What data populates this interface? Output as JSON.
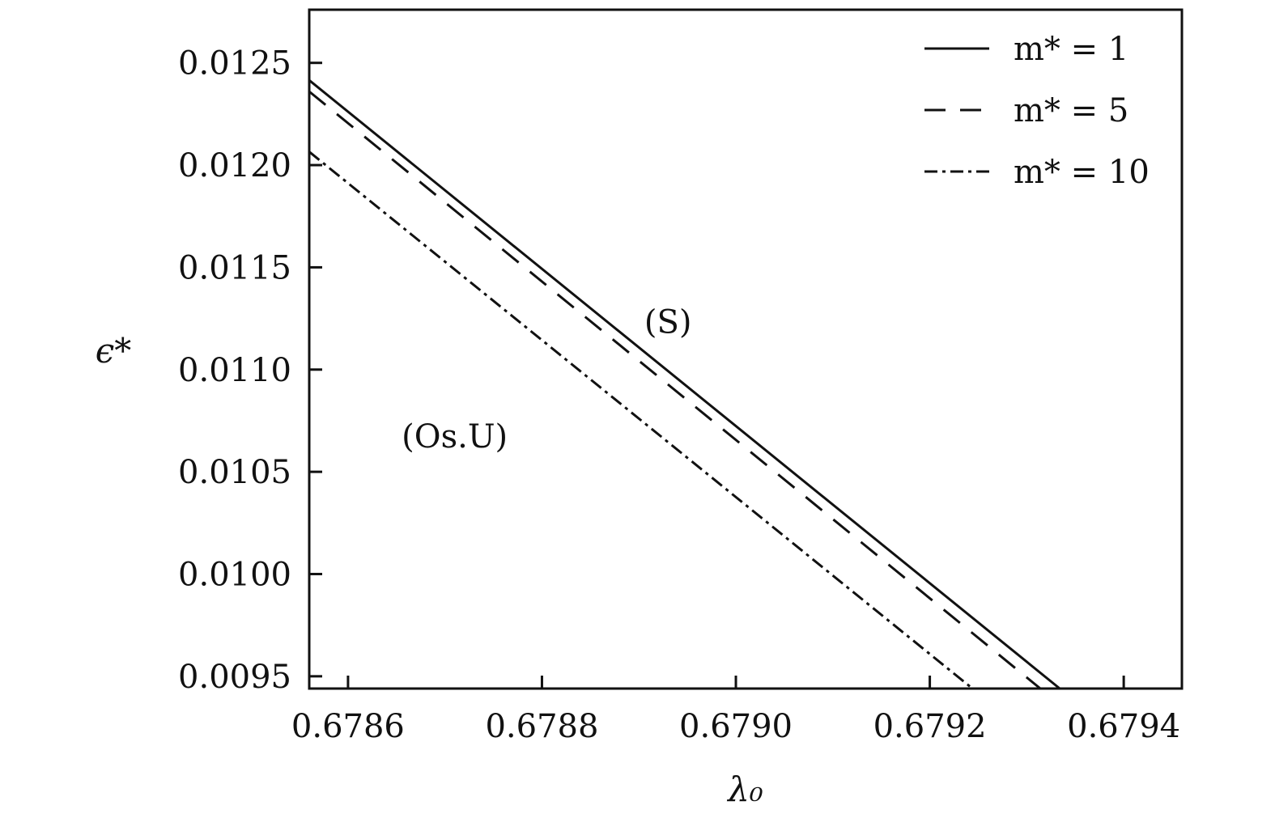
{
  "chart_data": {
    "type": "line",
    "title": "",
    "xlabel": "λ₀",
    "ylabel": "ϵ*",
    "xlim": [
      0.67856,
      0.67946
    ],
    "ylim": [
      0.00944,
      0.01276
    ],
    "x_ticks": [
      0.6786,
      0.6788,
      0.679,
      0.6792,
      0.6794
    ],
    "x_tick_labels": [
      "0.6786",
      "0.6788",
      "0.6790",
      "0.6792",
      "0.6794"
    ],
    "y_ticks": [
      0.0095,
      0.01,
      0.0105,
      0.011,
      0.0115,
      0.012,
      0.0125
    ],
    "y_tick_labels": [
      "0.0095",
      "0.0100",
      "0.0105",
      "0.0110",
      "0.0115",
      "0.0120",
      "0.0125"
    ],
    "grid": false,
    "legend_position": "top-right",
    "series": [
      {
        "name": "m* = 1",
        "style": "solid",
        "x": [
          0.67856,
          0.679334
        ],
        "y": [
          0.012415,
          0.00944
        ]
      },
      {
        "name": "m* = 5",
        "style": "dashed",
        "x": [
          0.67856,
          0.679314
        ],
        "y": [
          0.01236,
          0.00944
        ]
      },
      {
        "name": "m* = 10",
        "style": "dashdot",
        "x": [
          0.67856,
          0.679244
        ],
        "y": [
          0.012065,
          0.00944
        ]
      }
    ],
    "annotations": [
      {
        "text": "(S)",
        "x": 0.67893,
        "y": 0.01118
      },
      {
        "text": "(Os.U)",
        "x": 0.67871,
        "y": 0.01062
      }
    ]
  }
}
